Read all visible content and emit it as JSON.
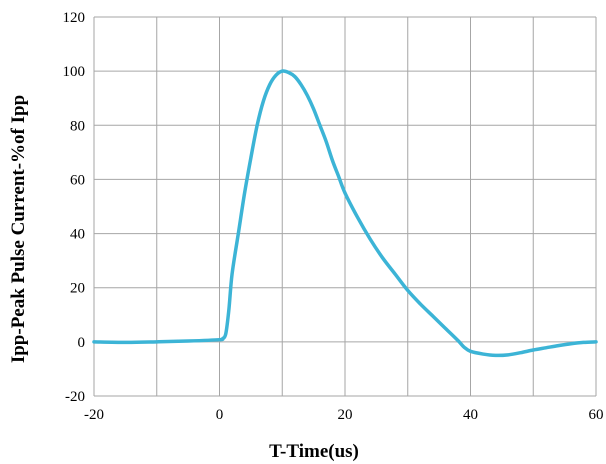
{
  "chart_data": {
    "type": "line",
    "xlabel": "T-Time(us)",
    "ylabel": "Ipp-Peak Pulse Current-%of Ipp",
    "xlim": [
      -20,
      60
    ],
    "ylim": [
      -20,
      120
    ],
    "xticks": [
      -20,
      0,
      20,
      40,
      60
    ],
    "yticks": [
      -20,
      0,
      20,
      40,
      60,
      80,
      100,
      120
    ],
    "grid": true,
    "line_color": "#3cb4d6",
    "grid_color": "#a6a6a6",
    "series": [
      {
        "points": [
          [
            -20,
            0
          ],
          [
            -15,
            -0.2
          ],
          [
            -10,
            0
          ],
          [
            -5,
            0.3
          ],
          [
            0,
            0.8
          ],
          [
            0.5,
            1.2
          ],
          [
            1,
            3
          ],
          [
            1.5,
            12
          ],
          [
            2,
            25
          ],
          [
            3,
            40
          ],
          [
            4,
            55
          ],
          [
            5,
            68
          ],
          [
            6,
            80
          ],
          [
            7,
            89
          ],
          [
            8,
            95
          ],
          [
            9,
            98.5
          ],
          [
            10,
            100
          ],
          [
            11,
            99.5
          ],
          [
            12,
            98
          ],
          [
            13,
            95
          ],
          [
            14,
            91
          ],
          [
            15,
            86
          ],
          [
            16,
            80
          ],
          [
            17,
            74
          ],
          [
            18,
            67
          ],
          [
            19,
            61
          ],
          [
            20,
            55
          ],
          [
            22,
            46
          ],
          [
            24,
            38
          ],
          [
            26,
            31
          ],
          [
            28,
            25
          ],
          [
            30,
            19
          ],
          [
            32,
            14
          ],
          [
            34,
            9.5
          ],
          [
            36,
            5
          ],
          [
            38,
            0.5
          ],
          [
            39,
            -2
          ],
          [
            40,
            -3.5
          ],
          [
            42,
            -4.5
          ],
          [
            44,
            -5
          ],
          [
            46,
            -4.8
          ],
          [
            48,
            -4
          ],
          [
            50,
            -3
          ],
          [
            52,
            -2.2
          ],
          [
            54,
            -1.4
          ],
          [
            56,
            -0.7
          ],
          [
            58,
            -0.2
          ],
          [
            60,
            0
          ]
        ]
      }
    ]
  }
}
